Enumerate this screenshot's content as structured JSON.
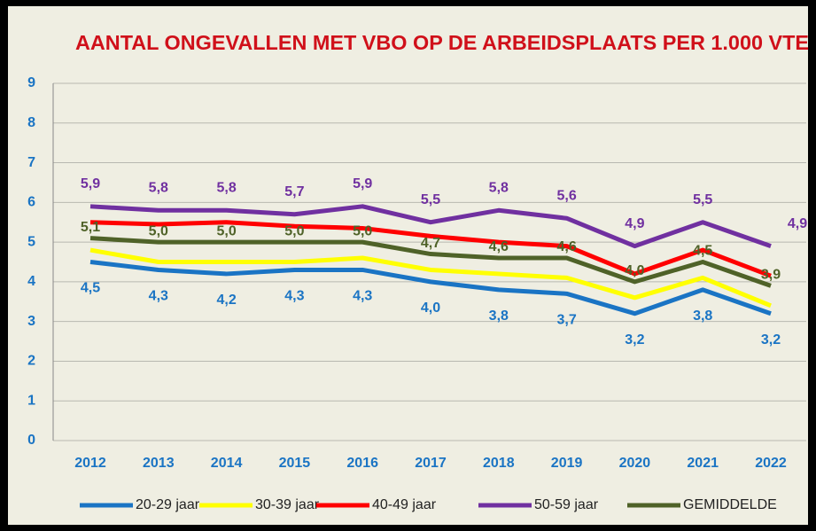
{
  "chart_data": {
    "type": "line",
    "title": "AANTAL ONGEVALLEN MET VBO OP DE ARBEIDSPLAATS PER 1.000 VTE",
    "categories": [
      "2012",
      "2013",
      "2014",
      "2015",
      "2016",
      "2017",
      "2018",
      "2019",
      "2020",
      "2021",
      "2022"
    ],
    "series": [
      {
        "name": "20-29 jaar",
        "color": "#1a74c4",
        "values": [
          4.5,
          4.3,
          4.2,
          4.3,
          4.3,
          4.0,
          3.8,
          3.7,
          3.2,
          3.8,
          3.2
        ],
        "value_labels": [
          "4,5",
          "4,3",
          "4,2",
          "4,3",
          "4,3",
          "4,0",
          "3,8",
          "3,7",
          "3,2",
          "3,8",
          "3,2"
        ]
      },
      {
        "name": "30-39 jaar",
        "color": "#ffff00",
        "values": [
          4.8,
          4.5,
          4.5,
          4.5,
          4.6,
          4.3,
          4.2,
          4.1,
          3.6,
          4.1,
          3.4
        ]
      },
      {
        "name": "40-49 jaar",
        "color": "#ff0000",
        "values": [
          5.5,
          5.45,
          5.5,
          5.4,
          5.35,
          5.15,
          5.0,
          4.9,
          4.2,
          4.8,
          4.15
        ]
      },
      {
        "name": "50-59 jaar",
        "color": "#7030a0",
        "values": [
          5.9,
          5.8,
          5.8,
          5.7,
          5.9,
          5.5,
          5.8,
          5.6,
          4.9,
          5.5,
          4.9
        ],
        "value_labels": [
          "5,9",
          "5,8",
          "5,8",
          "5,7",
          "5,9",
          "5,5",
          "5,8",
          "5,6",
          "4,9",
          "5,5",
          "4,9"
        ]
      },
      {
        "name": "GEMIDDELDE",
        "color": "#4f6228",
        "values": [
          5.1,
          5.0,
          5.0,
          5.0,
          5.0,
          4.7,
          4.6,
          4.6,
          4.0,
          4.5,
          3.9
        ],
        "value_labels": [
          "5,1",
          "5,0",
          "5,0",
          "5,0",
          "5,0",
          "4,7",
          "4,6",
          "4,6",
          "4,0",
          "4,5",
          "3,9"
        ]
      }
    ],
    "ylim": [
      0,
      9
    ],
    "yticks": [
      0,
      1,
      2,
      3,
      4,
      5,
      6,
      7,
      8,
      9
    ],
    "grid": true,
    "legend": "bottom"
  }
}
